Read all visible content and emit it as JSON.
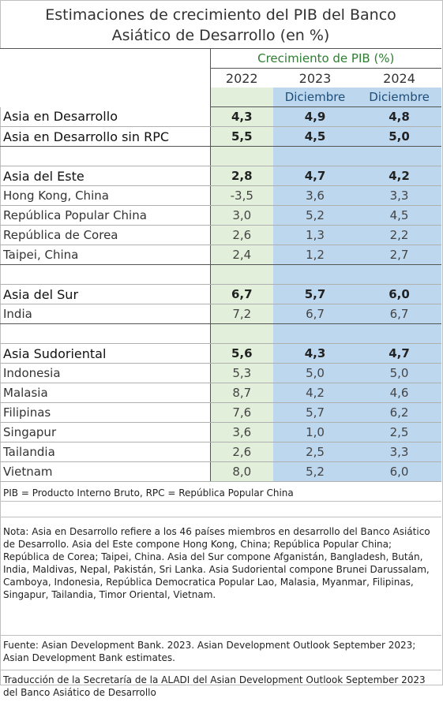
{
  "title_line1": "Estimaciones de crecimiento del PIB del Banco",
  "title_line2": "Asiático de Desarrollo (en %)",
  "header": {
    "growth_label": "Crecimiento de PIB (%)",
    "years": [
      "2022",
      "2023",
      "2024"
    ],
    "months": [
      "",
      "Diciembre",
      "Diciembre"
    ]
  },
  "rows": [
    {
      "label": "Asia en Desarrollo",
      "values": [
        "4,3",
        "4,9",
        "4,8"
      ],
      "bold": true
    },
    {
      "label": "Asia en Desarrollo sin RPC",
      "values": [
        "5,5",
        "4,5",
        "5,0"
      ],
      "bold": true
    },
    {
      "spacer": true
    },
    {
      "label": "Asia del Este",
      "values": [
        "2,8",
        "4,7",
        "4,2"
      ],
      "bold": true
    },
    {
      "label": "Hong Kong, China",
      "values": [
        "-3,5",
        "3,6",
        "3,3"
      ]
    },
    {
      "label": "República Popular China",
      "values": [
        "3,0",
        "5,2",
        "4,5"
      ]
    },
    {
      "label": "República de Corea",
      "values": [
        "2,6",
        "1,3",
        "2,2"
      ]
    },
    {
      "label": "Taipei, China",
      "values": [
        "2,4",
        "1,2",
        "2,7"
      ]
    },
    {
      "spacer": true
    },
    {
      "label": "Asia del Sur",
      "values": [
        "6,7",
        "5,7",
        "6,0"
      ],
      "bold": true
    },
    {
      "label": "India",
      "values": [
        "7,2",
        "6,7",
        "6,7"
      ]
    },
    {
      "spacer": true
    },
    {
      "label": "Asia Sudoriental",
      "values": [
        "5,6",
        "4,3",
        "4,7"
      ],
      "bold": true
    },
    {
      "label": "Indonesia",
      "values": [
        "5,3",
        "5,0",
        "5,0"
      ]
    },
    {
      "label": "Malasia",
      "values": [
        "8,7",
        "4,2",
        "4,6"
      ]
    },
    {
      "label": "Filipinas",
      "values": [
        "7,6",
        "5,7",
        "6,2"
      ]
    },
    {
      "label": "Singapur",
      "values": [
        "3,6",
        "1,0",
        "2,5"
      ]
    },
    {
      "label": "Tailandia",
      "values": [
        "2,6",
        "2,5",
        "3,3"
      ]
    },
    {
      "label": "Vietnam",
      "values": [
        "8,0",
        "5,2",
        "6,0"
      ]
    }
  ],
  "abbreviations": "PIB = Producto Interno Bruto, RPC = República Popular China",
  "note": "Nota: Asia en Desarrollo refiere a los 46 países miembros en desarrollo del Banco Asiático de Desarrollo. Asia del Este compone Hong Kong, China; República Popular China; República de Corea; Taipei, China. Asia del Sur compone Afganistán, Bangladesh, Bután, India, Maldivas, Nepal, Pakistán, Sri Lanka. Asia Sudoriental compone Brunei Darussalam, Camboya, Indonesia, República Democratica Popular Lao, Malasia, Myanmar, Filipinas, Singapur, Tailandia, Timor Oriental, Vietnam.",
  "source": "Fuente: Asian Development Bank. 2023. Asian Development Outlook September 2023; Asian Development Bank estimates.",
  "translation": "Traducción de la Secretaría de la ALADI del Asian Development Outlook September 2023 del Banco Asiático de Desarrollo"
}
